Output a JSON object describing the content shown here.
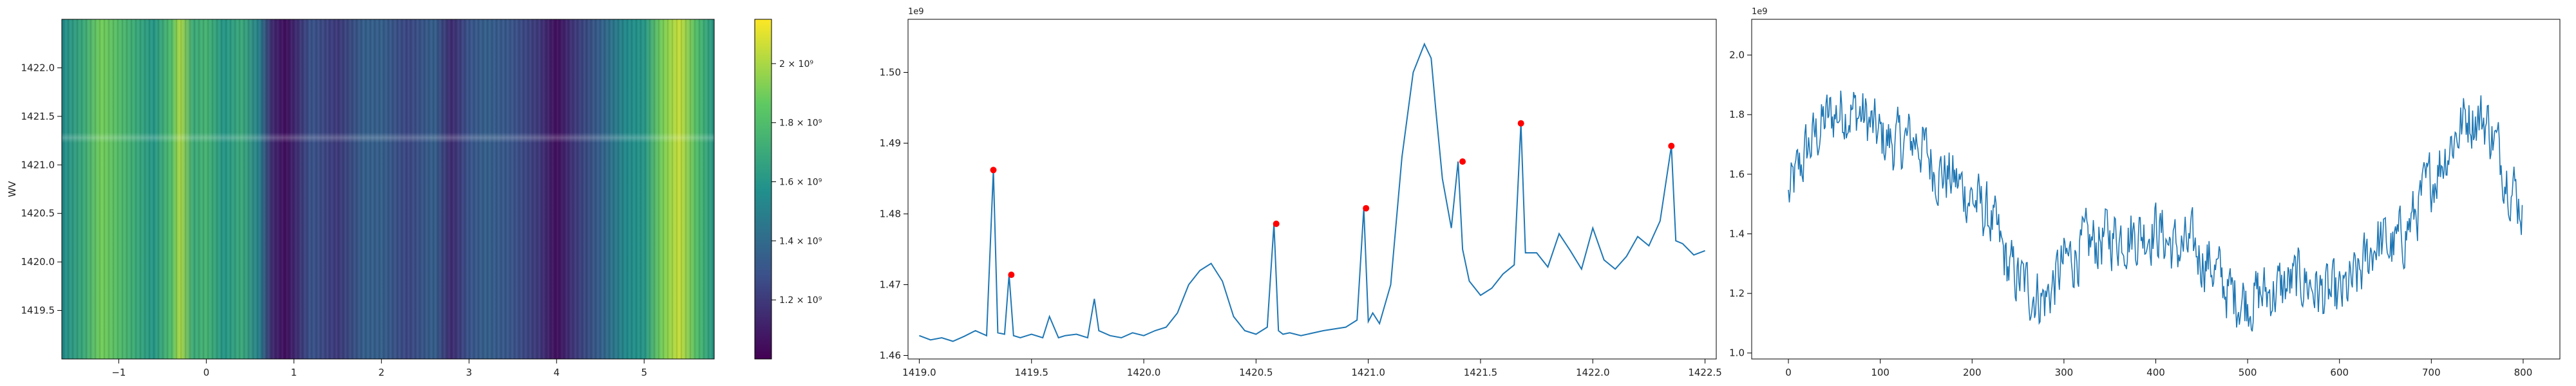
{
  "chart_data": [
    {
      "type": "heatmap",
      "xlabel": "",
      "ylabel": "WV",
      "xlim": [
        -1.65,
        5.8
      ],
      "ylim": [
        1419.0,
        1422.5
      ],
      "x_ticks": [
        "−1",
        "0",
        "1",
        "2",
        "3",
        "4",
        "5"
      ],
      "y_ticks": [
        "1419.5",
        "1420.0",
        "1420.5",
        "1421.0",
        "1421.5",
        "1422.0"
      ],
      "colormap": "viridis",
      "colorbar": {
        "vmin": 1000000000.0,
        "vmax": 2150000000.0,
        "ticks": [
          "1.2 × 10⁹",
          "1.4 × 10⁹",
          "1.6 × 10⁹",
          "1.8 × 10⁹",
          "2 × 10⁹"
        ]
      },
      "column_profile": {
        "x": [
          -1.65,
          -1.4,
          -1.2,
          -0.9,
          -0.6,
          -0.4,
          -0.3,
          -0.15,
          0.0,
          0.2,
          0.4,
          0.6,
          0.75,
          0.9,
          1.2,
          1.5,
          1.8,
          2.0,
          2.3,
          2.6,
          2.8,
          3.0,
          3.2,
          3.5,
          3.8,
          4.0,
          4.2,
          4.5,
          4.8,
          5.0,
          5.2,
          5.4,
          5.6,
          5.8
        ],
        "values": [
          1.55,
          1.7,
          1.9,
          1.75,
          1.6,
          1.8,
          2.0,
          1.7,
          1.75,
          1.6,
          1.7,
          1.5,
          1.15,
          1.05,
          1.3,
          1.2,
          1.35,
          1.35,
          1.25,
          1.35,
          1.15,
          1.3,
          1.35,
          1.3,
          1.2,
          1.05,
          1.2,
          1.35,
          1.55,
          1.6,
          1.9,
          2.05,
          1.8,
          1.6
        ]
      },
      "horizontal_band_wv": 1421.28
    },
    {
      "type": "line",
      "offset_label": "1e9",
      "xlim": [
        1418.95,
        1422.55
      ],
      "ylim": [
        1.4595,
        1.5075
      ],
      "x_ticks": [
        "1419.0",
        "1419.5",
        "1420.0",
        "1420.5",
        "1421.0",
        "1421.5",
        "1422.0",
        "1422.5"
      ],
      "y_ticks": [
        "1.46",
        "1.47",
        "1.48",
        "1.49",
        "1.50"
      ],
      "series_color": "#1f77b4",
      "peak_color": "#ff0000",
      "x": [
        1419.0,
        1419.05,
        1419.1,
        1419.15,
        1419.2,
        1419.25,
        1419.3,
        1419.33,
        1419.35,
        1419.38,
        1419.4,
        1419.42,
        1419.45,
        1419.5,
        1419.55,
        1419.58,
        1419.62,
        1419.65,
        1419.7,
        1419.75,
        1419.78,
        1419.8,
        1419.85,
        1419.9,
        1419.95,
        1420.0,
        1420.05,
        1420.1,
        1420.15,
        1420.2,
        1420.25,
        1420.3,
        1420.35,
        1420.4,
        1420.45,
        1420.5,
        1420.55,
        1420.58,
        1420.6,
        1420.62,
        1420.65,
        1420.7,
        1420.8,
        1420.9,
        1420.95,
        1420.98,
        1421.0,
        1421.02,
        1421.05,
        1421.1,
        1421.15,
        1421.2,
        1421.25,
        1421.28,
        1421.3,
        1421.33,
        1421.37,
        1421.4,
        1421.42,
        1421.45,
        1421.5,
        1421.55,
        1421.6,
        1421.65,
        1421.68,
        1421.7,
        1421.75,
        1421.8,
        1421.85,
        1421.9,
        1421.95,
        1422.0,
        1422.05,
        1422.1,
        1422.15,
        1422.2,
        1422.25,
        1422.3,
        1422.35,
        1422.37,
        1422.4,
        1422.45,
        1422.5
      ],
      "y": [
        1.4628,
        1.4622,
        1.4625,
        1.462,
        1.4627,
        1.4635,
        1.4628,
        1.4862,
        1.4632,
        1.463,
        1.4714,
        1.4628,
        1.4625,
        1.463,
        1.4625,
        1.4655,
        1.4625,
        1.4628,
        1.463,
        1.4625,
        1.468,
        1.4635,
        1.4628,
        1.4625,
        1.4632,
        1.4628,
        1.4635,
        1.464,
        1.466,
        1.47,
        1.472,
        1.473,
        1.4705,
        1.4655,
        1.4635,
        1.463,
        1.464,
        1.4786,
        1.4635,
        1.463,
        1.4632,
        1.4628,
        1.4635,
        1.464,
        1.465,
        1.4808,
        1.4648,
        1.466,
        1.4645,
        1.47,
        1.488,
        1.5,
        1.504,
        1.502,
        1.495,
        1.485,
        1.478,
        1.4874,
        1.475,
        1.4705,
        1.4685,
        1.4695,
        1.4715,
        1.4728,
        1.4928,
        1.4745,
        1.4745,
        1.4725,
        1.4772,
        1.4748,
        1.4722,
        1.478,
        1.4735,
        1.4722,
        1.474,
        1.4768,
        1.4755,
        1.479,
        1.4896,
        1.4762,
        1.4758,
        1.4742,
        1.4748
      ],
      "peaks_x": [
        1419.33,
        1419.41,
        1420.59,
        1420.99,
        1421.42,
        1421.68,
        1422.35
      ],
      "peaks_y": [
        1.4862,
        1.4714,
        1.4786,
        1.4808,
        1.4874,
        1.4928,
        1.4896
      ]
    },
    {
      "type": "line",
      "offset_label": "1e9",
      "xlim": [
        -40,
        840
      ],
      "ylim": [
        0.98,
        2.12
      ],
      "x_ticks": [
        "0",
        "100",
        "200",
        "300",
        "400",
        "500",
        "600",
        "700",
        "800"
      ],
      "y_ticks": [
        "1.0",
        "1.2",
        "1.4",
        "1.6",
        "1.8",
        "2.0"
      ],
      "series_color": "#1f77b4",
      "trend_x": [
        0,
        20,
        40,
        60,
        80,
        100,
        120,
        140,
        160,
        180,
        200,
        220,
        240,
        260,
        280,
        300,
        320,
        340,
        360,
        380,
        400,
        420,
        440,
        460,
        480,
        500,
        520,
        540,
        560,
        580,
        600,
        620,
        640,
        660,
        680,
        700,
        720,
        740,
        760,
        780,
        800
      ],
      "trend_y": [
        1.52,
        1.68,
        1.78,
        1.82,
        1.8,
        1.72,
        1.7,
        1.72,
        1.62,
        1.58,
        1.52,
        1.45,
        1.28,
        1.22,
        1.18,
        1.3,
        1.35,
        1.38,
        1.4,
        1.4,
        1.42,
        1.35,
        1.35,
        1.3,
        1.2,
        1.18,
        1.2,
        1.22,
        1.25,
        1.2,
        1.18,
        1.25,
        1.38,
        1.35,
        1.45,
        1.58,
        1.7,
        1.8,
        1.78,
        1.62,
        1.48
      ],
      "noise_amplitude": 0.09,
      "n_points": 800
    }
  ]
}
